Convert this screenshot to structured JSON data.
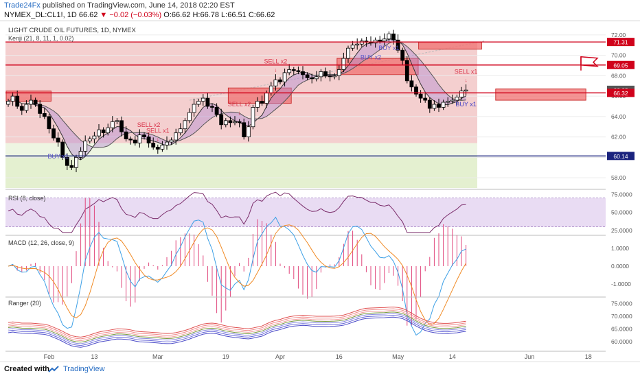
{
  "header": {
    "publisher": "Trade24Fx",
    "published_text": "published on TradingView.com, June 14, 2018 02:20 EST",
    "symbol": "NYMEX_DL:CL1!, 1D",
    "last": "66.62",
    "change": "−0.02 (−0.03%)",
    "ohlc": "O:66.62 H:66.78 L:66.51 C:66.62"
  },
  "footer": {
    "created_with": "Created with",
    "brand": "TradingView"
  },
  "chart_data": {
    "type": "candlestick",
    "title": "LIGHT CRUDE OIL FUTURES, 1D, NYMEX",
    "indicator_label": "Kenji (21, 8, 11, 1, 0.02)",
    "x_ticks": [
      "Feb",
      "13",
      "Mar",
      "19",
      "Apr",
      "16",
      "May",
      "14",
      "Jun",
      "18"
    ],
    "y_ticks": [
      58.0,
      60.0,
      62.0,
      64.0,
      66.0,
      68.0,
      70.0,
      72.0
    ],
    "ylim": [
      57.0,
      73.0
    ],
    "price_levels": [
      {
        "label": "71.31",
        "value": 71.31,
        "color": "#d0021b"
      },
      {
        "label": "69.05",
        "value": 69.05,
        "color": "#d0021b"
      },
      {
        "label": "66.62",
        "value": 66.62,
        "color": "#555555"
      },
      {
        "label": "66.32",
        "value": 66.32,
        "color": "#d0021b"
      },
      {
        "label": "60.14",
        "value": 60.14,
        "color": "#1a237e"
      }
    ],
    "close_series": [
      65.5,
      66.0,
      65.0,
      64.6,
      65.2,
      65.6,
      65.2,
      64.3,
      64.0,
      62.8,
      61.9,
      61.5,
      60.0,
      59.2,
      59.0,
      60.0,
      60.6,
      61.6,
      61.8,
      62.1,
      62.7,
      62.4,
      62.9,
      63.5,
      63.6,
      62.5,
      61.8,
      61.7,
      61.4,
      62.2,
      62.0,
      61.4,
      61.0,
      60.8,
      61.2,
      61.5,
      61.7,
      62.4,
      62.8,
      63.6,
      64.4,
      65.2,
      65.5,
      65.8,
      65.0,
      64.9,
      64.2,
      63.2,
      63.6,
      63.4,
      63.5,
      63.4,
      62.0,
      63.0,
      64.9,
      65.5,
      65.3,
      66.3,
      67.0,
      67.6,
      67.4,
      68.3,
      68.6,
      68.5,
      68.4,
      68.1,
      67.8,
      67.7,
      67.9,
      68.4,
      68.0,
      67.9,
      68.0,
      68.6,
      69.7,
      70.7,
      71.0,
      71.1,
      71.4,
      71.3,
      71.2,
      71.5,
      71.4,
      71.6,
      72.1,
      71.5,
      70.5,
      69.5,
      67.5,
      66.9,
      66.2,
      65.8,
      65.6,
      64.8,
      65.2,
      64.9,
      65.4,
      65.5,
      65.6,
      65.9,
      66.5,
      66.6
    ],
    "signals": [
      {
        "label": "BUY x1",
        "bar": 11,
        "type": "buy"
      },
      {
        "label": "SELL x2",
        "bar": 31,
        "type": "sell"
      },
      {
        "label": "SELL x1",
        "bar": 33,
        "type": "sell"
      },
      {
        "label": "SELL x2",
        "bar": 51,
        "type": "sell"
      },
      {
        "label": "SELL x2",
        "bar": 59,
        "type": "sell"
      },
      {
        "label": "BUY x2",
        "bar": 80,
        "type": "buy"
      },
      {
        "label": "BUY x1",
        "bar": 84,
        "type": "buy"
      },
      {
        "label": "BUY x1",
        "bar": 113,
        "type": "buy"
      },
      {
        "label": "BUY x1",
        "bar": 119,
        "type": "buy"
      },
      {
        "label": "SELL x1",
        "bar": 168,
        "type": "sell"
      }
    ],
    "panels": [
      {
        "name": "RSI",
        "label": "RSI (8, close)",
        "ticks": [
          "75.0000",
          "50.0000",
          "25.0000"
        ]
      },
      {
        "name": "MACD",
        "label": "MACD (12, 26, close, 9)",
        "ticks": [
          "1.0000",
          "0.0000",
          "-1.0000"
        ]
      },
      {
        "name": "Ranger",
        "label": "Ranger (20)",
        "ticks": [
          "75.0000",
          "70.0000",
          "65.0000",
          "60.0000"
        ]
      }
    ],
    "colors": {
      "up": "#ffffff",
      "down": "#000000",
      "rsi": "#7b2d6b",
      "macd": "#3da0e6",
      "signal": "#f08a24",
      "hist": "#e0457b",
      "zone": "#f4cfcf",
      "support": "#e4f0d0"
    }
  }
}
